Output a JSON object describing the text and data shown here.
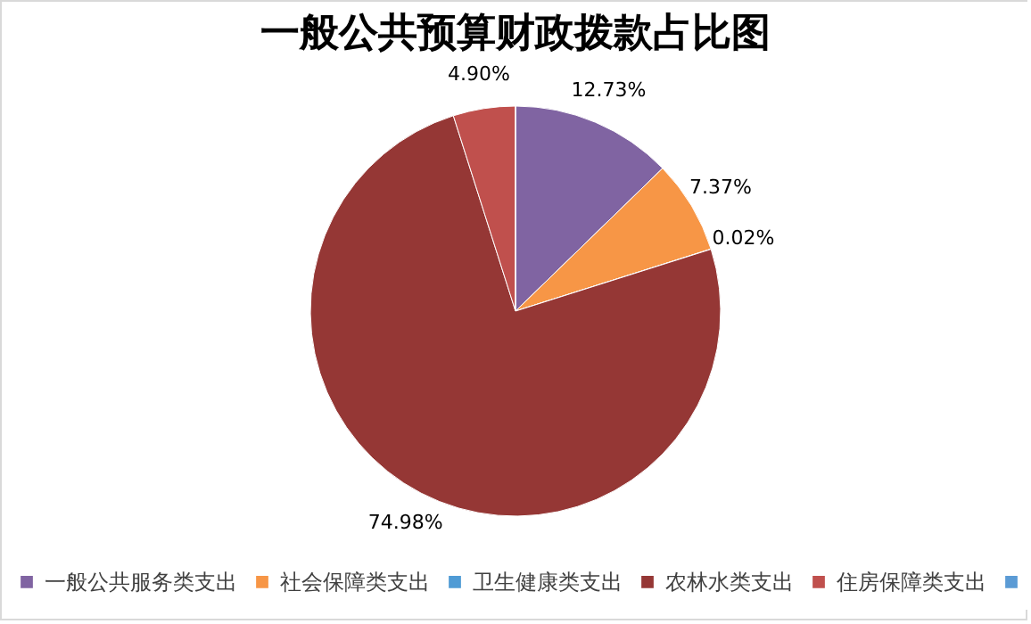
{
  "chart_data": {
    "type": "pie",
    "title": "一般公共预算财政拨款占比图",
    "categories": [
      "一般公共服务类支出",
      "社会保障类支出",
      "卫生健康类支出",
      "农林水类支出",
      "住房保障类支出",
      null
    ],
    "values": [
      12.73,
      7.37,
      0.02,
      74.98,
      4.9,
      0
    ],
    "colors": [
      "#8064a2",
      "#f79646",
      "#4f9bd5",
      "#953735",
      "#c0504d",
      "#5b9bd5"
    ],
    "value_labels": [
      "12.73%",
      "7.37%",
      "0.02%",
      "74.98%",
      "4.90%",
      null
    ],
    "legend": "bottom"
  }
}
